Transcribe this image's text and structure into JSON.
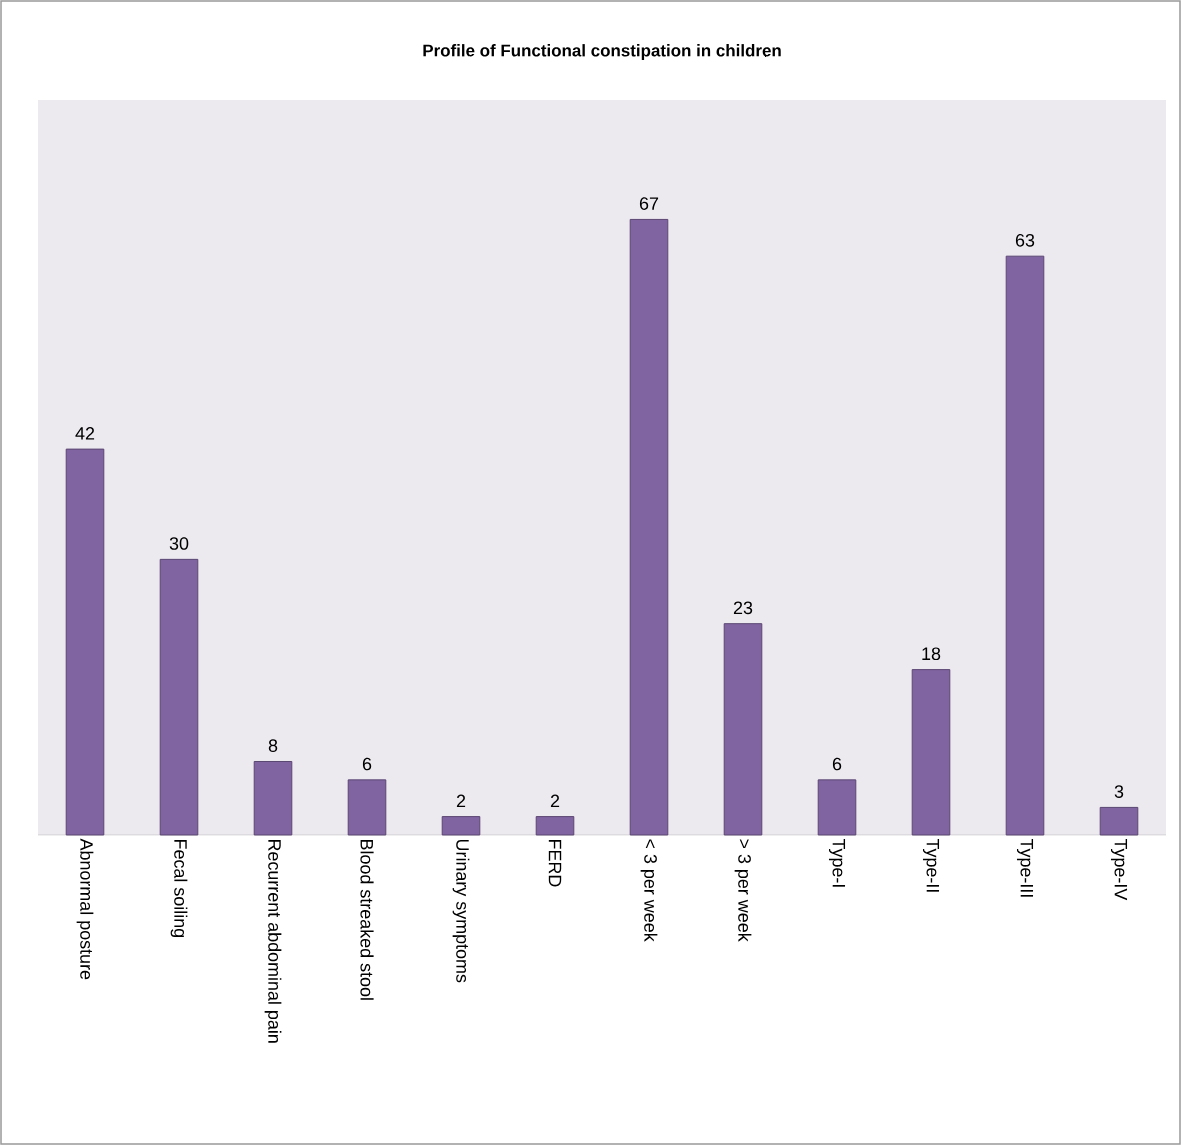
{
  "chart_data": {
    "type": "bar",
    "title": "Profile of Functional constipation in children",
    "categories": [
      "Abnormal posture",
      "Fecal soiling",
      "Recurrent abdominal pain",
      "Blood streaked stool",
      "Urinary symptoms",
      "FERD",
      "< 3 per week",
      "> 3 per week",
      "Type-I",
      "Type-II",
      "Type-III",
      "Type-IV"
    ],
    "values": [
      42,
      30,
      8,
      6,
      2,
      2,
      67,
      23,
      6,
      18,
      63,
      3
    ],
    "color": "#8064a2",
    "ylim": [
      0,
      80
    ],
    "data_labels": true,
    "tick_labels": "x"
  }
}
